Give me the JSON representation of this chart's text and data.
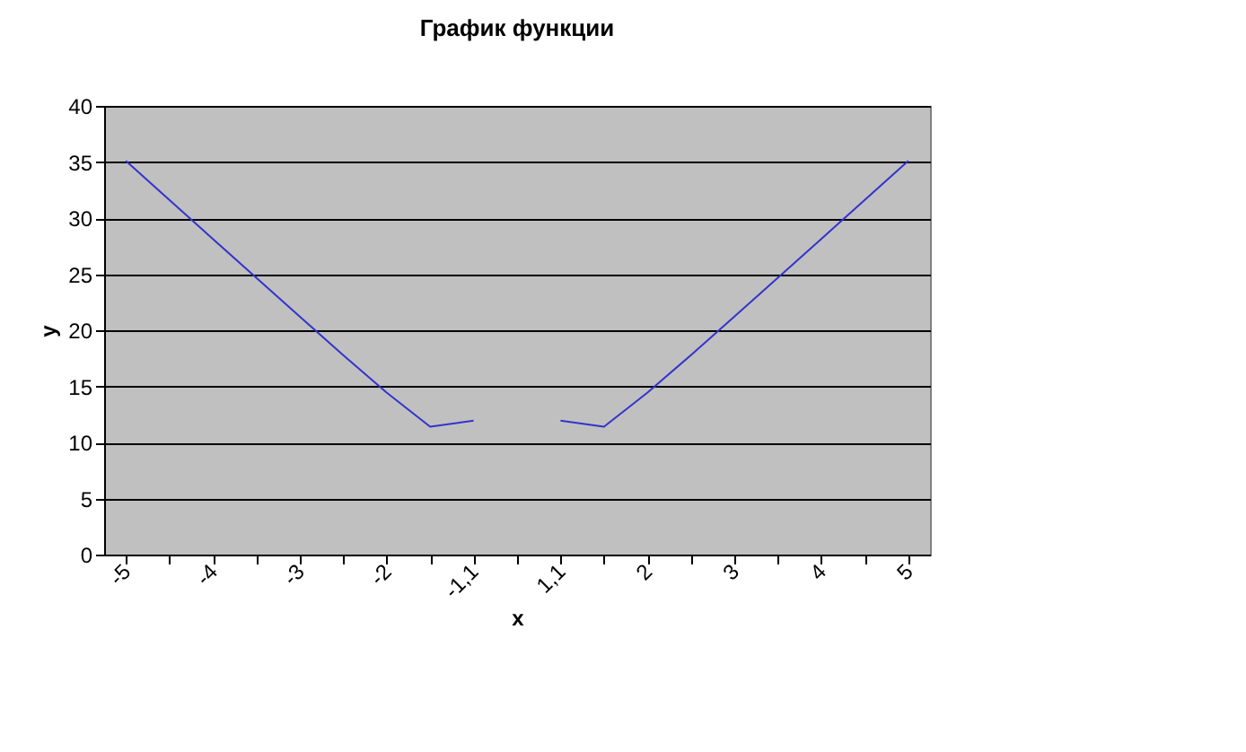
{
  "chart_data": {
    "type": "line",
    "title": "График функции",
    "xlabel": "x",
    "ylabel": "y",
    "categories": [
      "-5",
      null,
      "-4",
      null,
      "-3",
      null,
      "-2",
      null,
      "-1,1",
      null,
      "1,1",
      null,
      "2",
      null,
      "3",
      null,
      "4",
      null,
      "5"
    ],
    "series": [
      {
        "color": "#3333cc",
        "values": [
          35.109,
          31.624,
          28.144,
          24.671,
          21.213,
          17.785,
          14.434,
          11.404,
          11.937,
          null,
          11.937,
          11.404,
          14.434,
          17.785,
          21.213,
          24.671,
          28.144,
          31.624,
          35.109
        ]
      }
    ],
    "ylim": [
      0,
      40
    ],
    "yticks": [
      0,
      5,
      10,
      15,
      20,
      25,
      30,
      35,
      40
    ],
    "grid": "y",
    "legend": false,
    "marker": "none"
  }
}
